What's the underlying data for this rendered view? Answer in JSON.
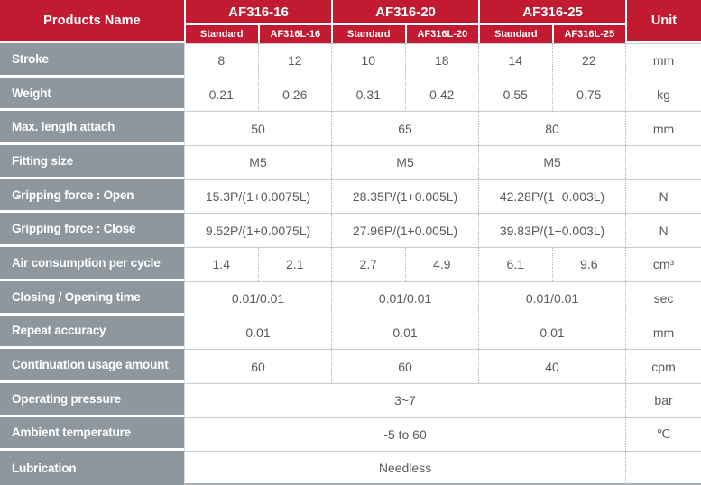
{
  "table": {
    "products_name_label": "Products Name",
    "unit_label": "Unit",
    "colors": {
      "header_red": "#C11A31",
      "label_gray": "#8E979D",
      "value_text": "#595A5C",
      "row_line": "#CBCBCB",
      "dotted_line": "#B3B3B3",
      "bottom_border": "#A9AEB2"
    },
    "product_groups": [
      {
        "name": "AF316-16",
        "sub": [
          "Standard",
          "AF316L-16"
        ]
      },
      {
        "name": "AF316-20",
        "sub": [
          "Standard",
          "AF316L-20"
        ]
      },
      {
        "name": "AF316-25",
        "sub": [
          "Standard",
          "AF316L-25"
        ]
      }
    ],
    "rows": [
      {
        "label": "Stroke",
        "span": 1,
        "values": [
          "8",
          "12",
          "10",
          "18",
          "14",
          "22"
        ],
        "unit": "mm"
      },
      {
        "label": "Weight",
        "span": 1,
        "values": [
          "0.21",
          "0.26",
          "0.31",
          "0.42",
          "0.55",
          "0.75"
        ],
        "unit": "kg"
      },
      {
        "label": "Max. length attach",
        "span": 2,
        "values": [
          "50",
          "65",
          "80"
        ],
        "unit": "mm"
      },
      {
        "label": "Fitting size",
        "span": 2,
        "values": [
          "M5",
          "M5",
          "M5"
        ],
        "unit": ""
      },
      {
        "label": "Gripping force : Open",
        "span": 2,
        "values": [
          "15.3P/(1+0.0075L)",
          "28.35P/(1+0.005L)",
          "42.28P/(1+0.003L)"
        ],
        "unit": "N"
      },
      {
        "label": "Gripping force : Close",
        "span": 2,
        "values": [
          "9.52P/(1+0.0075L)",
          "27.96P/(1+0.005L)",
          "39.83P/(1+0.003L)"
        ],
        "unit": "N"
      },
      {
        "label": "Air consumption per cycle",
        "span": 1,
        "values": [
          "1.4",
          "2.1",
          "2.7",
          "4.9",
          "6.1",
          "9.6"
        ],
        "unit": "cm³"
      },
      {
        "label": "Closing / Opening time",
        "span": 2,
        "values": [
          "0.01/0.01",
          "0.01/0.01",
          "0.01/0.01"
        ],
        "unit": "sec"
      },
      {
        "label": "Repeat accuracy",
        "span": 2,
        "values": [
          "0.01",
          "0.01",
          "0.01"
        ],
        "unit": "mm"
      },
      {
        "label": "Continuation usage amount",
        "span": 2,
        "values": [
          "60",
          "60",
          "40"
        ],
        "unit": "cpm"
      },
      {
        "label": "Operating pressure",
        "span": 6,
        "values": [
          "3~7"
        ],
        "unit": "bar"
      },
      {
        "label": "Ambient temperature",
        "span": 6,
        "values": [
          "-5 to 60"
        ],
        "unit": "℃"
      },
      {
        "label": "Lubrication",
        "span": 6,
        "values": [
          "Needless"
        ],
        "unit": ""
      }
    ]
  }
}
